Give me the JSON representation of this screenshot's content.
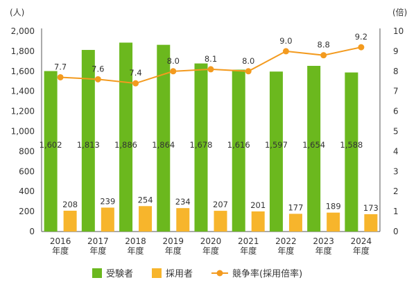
{
  "chart_data": {
    "type": "bar",
    "categories": [
      "2016",
      "2017",
      "2018",
      "2019",
      "2020",
      "2021",
      "2022",
      "2023",
      "2024"
    ],
    "category_sub": "年度",
    "series": [
      {
        "name": "受験者",
        "kind": "bar",
        "axis": "left",
        "color": "#6bb81e",
        "values": [
          1602,
          1813,
          1886,
          1864,
          1678,
          1616,
          1597,
          1654,
          1588
        ],
        "labels": [
          "1,602",
          "1,813",
          "1,886",
          "1,864",
          "1,678",
          "1,616",
          "1,597",
          "1,654",
          "1,588"
        ]
      },
      {
        "name": "採用者",
        "kind": "bar",
        "axis": "left",
        "color": "#f7b52c",
        "values": [
          208,
          239,
          254,
          234,
          207,
          201,
          177,
          189,
          173
        ],
        "labels": [
          "208",
          "239",
          "254",
          "234",
          "207",
          "201",
          "177",
          "189",
          "173"
        ]
      },
      {
        "name": "競争率(採用倍率)",
        "kind": "line",
        "axis": "right",
        "color": "#f39a1e",
        "values": [
          7.7,
          7.6,
          7.4,
          8.0,
          8.1,
          8.0,
          9.0,
          8.8,
          9.2
        ],
        "labels": [
          "7.7",
          "7.6",
          "7.4",
          "8.0",
          "8.1",
          "8.0",
          "9.0",
          "8.8",
          "9.2"
        ]
      }
    ],
    "y_left": {
      "unit": "(人)",
      "ylim": [
        0,
        2000
      ],
      "ticks": [
        "0",
        "200",
        "400",
        "600",
        "800",
        "1,000",
        "1,200",
        "1,400",
        "1,600",
        "1,800",
        "2,000"
      ]
    },
    "y_right": {
      "unit": "(倍)",
      "ylim": [
        0,
        10
      ],
      "ticks": [
        "0",
        "1",
        "2",
        "3",
        "4",
        "5",
        "6",
        "7",
        "8",
        "9",
        "10"
      ]
    },
    "grid": false,
    "legend_position": "bottom"
  }
}
